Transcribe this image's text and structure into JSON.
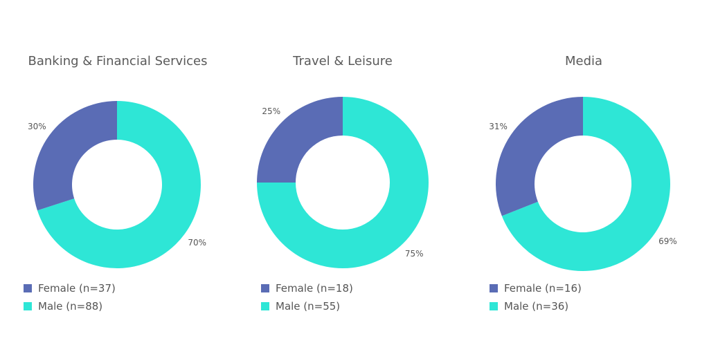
{
  "colors": {
    "female": "#5a6cb5",
    "male": "#2ee6d6"
  },
  "chart_data": [
    {
      "type": "pie",
      "title": "Banking & Financial Services",
      "series": [
        {
          "name": "Female",
          "value": 30,
          "label": "30%",
          "legend": "Female (n=37)"
        },
        {
          "name": "Male",
          "value": 70,
          "label": "70%",
          "legend": "Male (n=88)"
        }
      ]
    },
    {
      "type": "pie",
      "title": "Travel & Leisure",
      "series": [
        {
          "name": "Female",
          "value": 25,
          "label": "25%",
          "legend": "Female (n=18)"
        },
        {
          "name": "Male",
          "value": 75,
          "label": "75%",
          "legend": "Male (n=55)"
        }
      ]
    },
    {
      "type": "pie",
      "title": "Media",
      "series": [
        {
          "name": "Female",
          "value": 31,
          "label": "31%",
          "legend": "Female (n=16)"
        },
        {
          "name": "Male",
          "value": 69,
          "label": "69%",
          "legend": "Male (n=36)"
        }
      ]
    }
  ]
}
